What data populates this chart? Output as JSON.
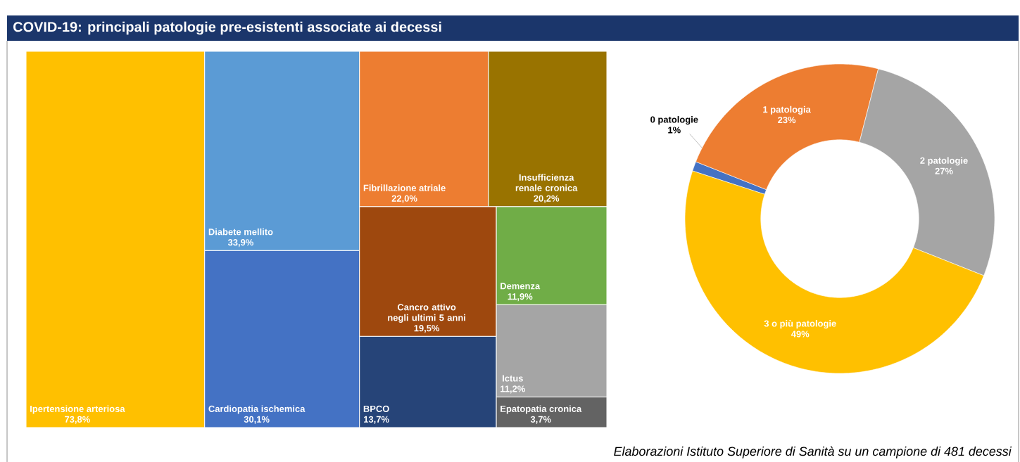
{
  "chart_data": [
    {
      "type": "other",
      "title": "COVID-19: principali patologie pre-esistenti associate ai decessi",
      "categories": [
        "Ipertensione arteriosa",
        "Diabete mellito",
        "Cardiopatia ischemica",
        "Fibrillazione atriale",
        "Insufficienza renale cronica",
        "Cancro attivo negli ultimi 5 anni",
        "BPCO",
        "Demenza",
        "Ictus",
        "Epatopatia cronica"
      ],
      "values": [
        73.8,
        33.9,
        30.1,
        22.0,
        20.2,
        19.5,
        13.7,
        11.9,
        11.2,
        3.7
      ],
      "value_labels": [
        "73,8%",
        "33,9%",
        "30,1%",
        "22,0%",
        "20,2%",
        "19,5%",
        "13,7%",
        "11,9%",
        "11,2%",
        "3,7%"
      ],
      "colors": [
        "#ffc000",
        "#5b9bd5",
        "#4472c4",
        "#ed7d31",
        "#997300",
        "#9e480e",
        "#264478",
        "#70ad47",
        "#a5a5a5",
        "#636363"
      ]
    },
    {
      "type": "donut",
      "categories": [
        "0 patologie",
        "1 patologia",
        "2 patologie",
        "3 o più patologie"
      ],
      "values": [
        1,
        23,
        27,
        49
      ],
      "value_labels": [
        "1%",
        "23%",
        "27%",
        "49%"
      ],
      "colors": [
        "#4472c4",
        "#ed7d31",
        "#a5a5a5",
        "#ffc000"
      ],
      "annotations": [
        "Elaborazioni Istituto Superiore di Sanità su un campione di 481 decessi"
      ]
    }
  ]
}
